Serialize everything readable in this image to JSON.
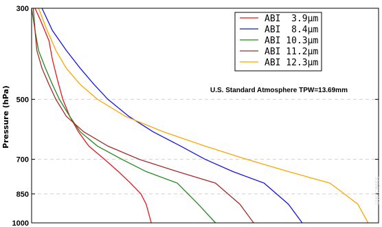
{
  "chart_data": {
    "type": "line",
    "title": "",
    "xlabel": "",
    "ylabel": "Pressure (hPa)",
    "y_scale": "log",
    "y_inverted": true,
    "ylim": [
      300,
      1000
    ],
    "y_ticks": [
      300,
      500,
      700,
      850,
      1000
    ],
    "xlim": [
      0,
      1
    ],
    "x_tick_labels_shown": false,
    "grid": "horizontal-dashed",
    "legend_position": "top-right",
    "annotation": "U.S. Standard Atmosphere TPW=13.69mm",
    "watermark": "UW/CIMSS",
    "series": [
      {
        "name": "ABI  3.9µm",
        "color": "#e8141e",
        "x": [
          0.01,
          0.025,
          0.05,
          0.06,
          0.075,
          0.09,
          0.11,
          0.135,
          0.165,
          0.21,
          0.25,
          0.285,
          0.315,
          0.33,
          0.345
        ],
        "y": [
          300,
          320,
          360,
          400,
          450,
          500,
          550,
          600,
          650,
          700,
          750,
          800,
          850,
          900,
          1000
        ]
      },
      {
        "name": "ABI  8.4µm",
        "color": "#1414e6",
        "x": [
          0.03,
          0.06,
          0.1,
          0.14,
          0.18,
          0.22,
          0.28,
          0.35,
          0.43,
          0.5,
          0.58,
          0.67,
          0.74,
          0.78
        ],
        "y": [
          300,
          340,
          380,
          420,
          460,
          500,
          550,
          600,
          650,
          700,
          750,
          800,
          900,
          1000
        ]
      },
      {
        "name": "ABI 10.3µm",
        "color": "#23871f",
        "x": [
          0.0,
          0.01,
          0.02,
          0.04,
          0.06,
          0.08,
          0.11,
          0.14,
          0.19,
          0.26,
          0.33,
          0.42,
          0.48,
          0.53
        ],
        "y": [
          300,
          340,
          380,
          420,
          460,
          500,
          550,
          600,
          650,
          700,
          750,
          800,
          900,
          1000
        ]
      },
      {
        "name": "ABI 11.2µm",
        "color": "#a52a2a",
        "x": [
          0.005,
          0.01,
          0.015,
          0.03,
          0.05,
          0.07,
          0.1,
          0.15,
          0.22,
          0.31,
          0.42,
          0.53,
          0.6,
          0.64
        ],
        "y": [
          300,
          340,
          380,
          420,
          460,
          500,
          550,
          600,
          650,
          700,
          750,
          800,
          900,
          1000
        ]
      },
      {
        "name": "ABI 12.3µm",
        "color": "#ffa500",
        "x": [
          0.02,
          0.045,
          0.07,
          0.1,
          0.14,
          0.19,
          0.27,
          0.38,
          0.5,
          0.62,
          0.74,
          0.86,
          0.94,
          0.97
        ],
        "y": [
          300,
          340,
          380,
          420,
          460,
          500,
          550,
          600,
          650,
          700,
          750,
          800,
          900,
          1000
        ]
      }
    ]
  }
}
